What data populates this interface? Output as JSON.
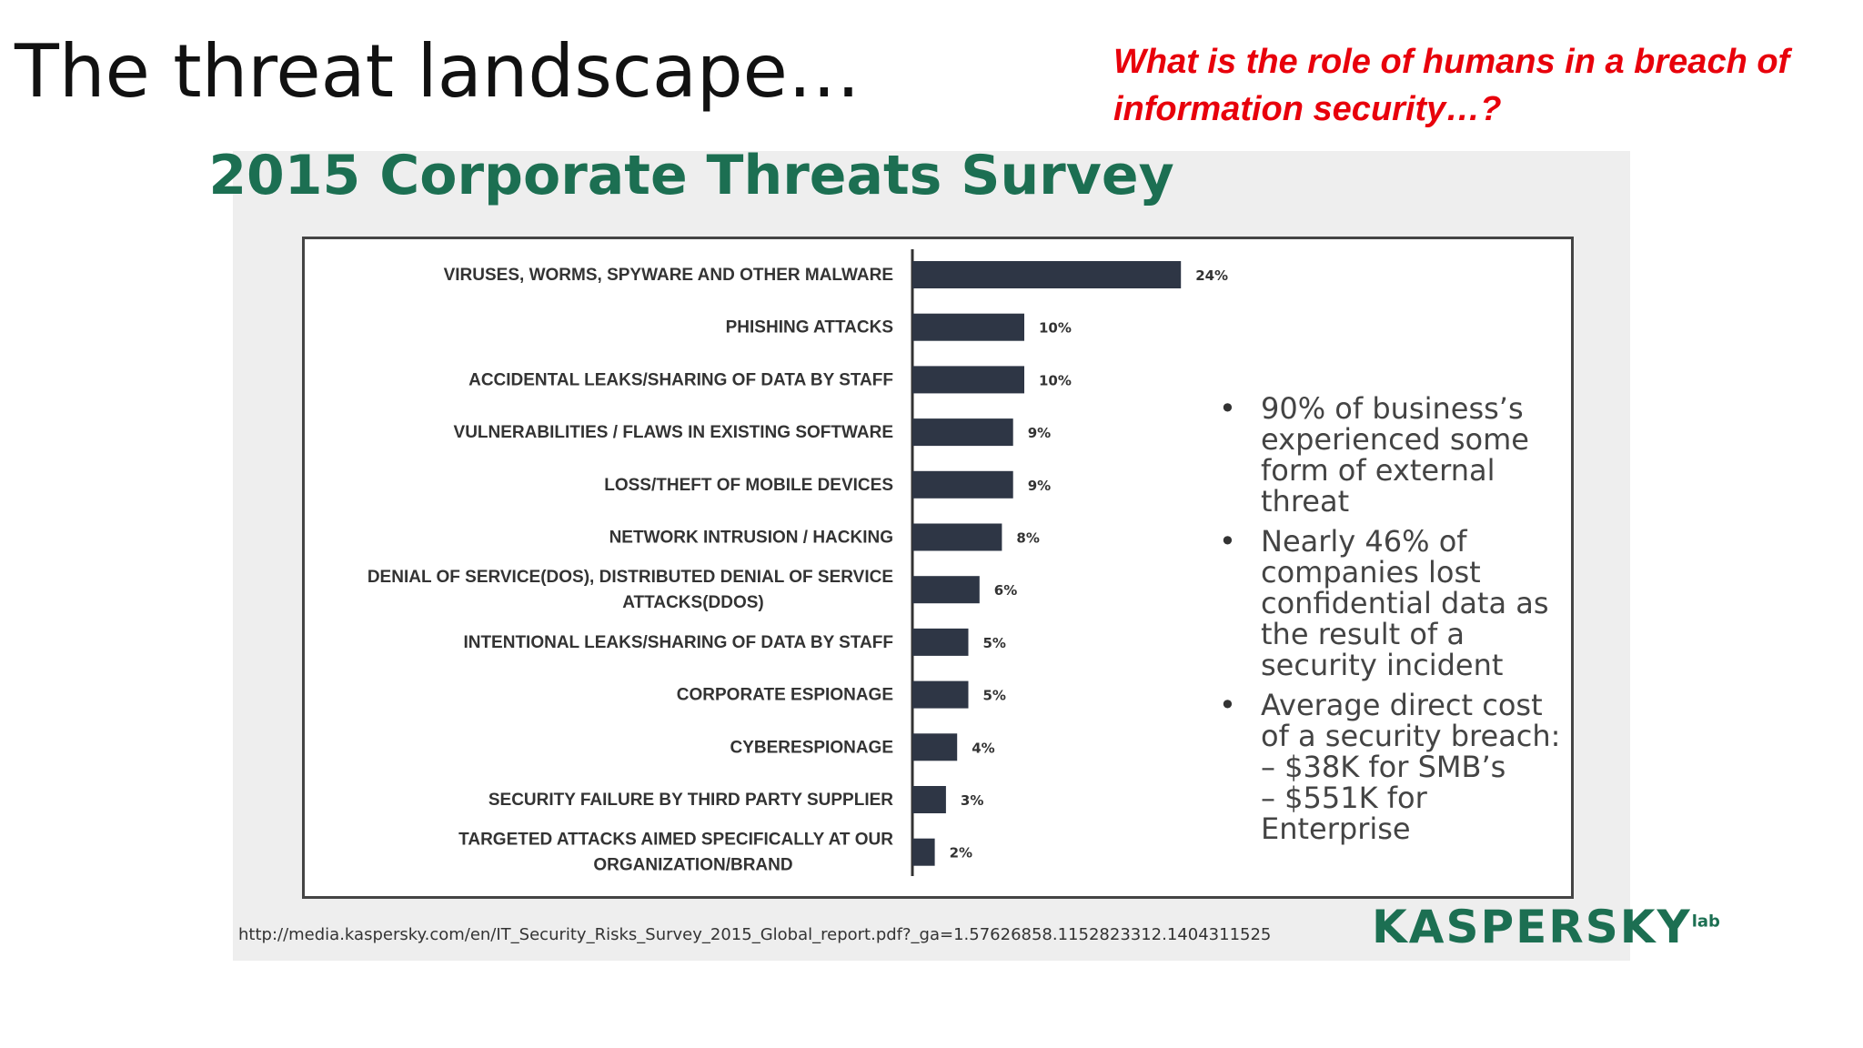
{
  "slide": {
    "title": "The threat landscape…",
    "question": "What is the role of humans in a breach of information security…?"
  },
  "chart_data": {
    "type": "bar",
    "orientation": "horizontal",
    "title": "2015 Corporate Threats Survey",
    "categories": [
      "VIRUSES, WORMS, SPYWARE AND OTHER MALWARE",
      "PHISHING ATTACKS",
      "ACCIDENTAL LEAKS/SHARING OF DATA BY STAFF",
      "VULNERABILITIES / FLAWS IN EXISTING SOFTWARE",
      "LOSS/THEFT OF MOBILE DEVICES",
      "NETWORK INTRUSION / HACKING",
      "DENIAL OF SERVICE(DOS), DISTRIBUTED DENIAL OF SERVICE ATTACKS(DDOS)",
      "INTENTIONAL LEAKS/SHARING OF DATA BY STAFF",
      "CORPORATE ESPIONAGE",
      "CYBERESPIONAGE",
      "SECURITY FAILURE BY THIRD PARTY SUPPLIER",
      "TARGETED ATTACKS AIMED SPECIFICALLY AT OUR ORGANIZATION/BRAND"
    ],
    "category_lines": [
      [
        "VIRUSES, WORMS, SPYWARE AND OTHER MALWARE"
      ],
      [
        "PHISHING ATTACKS"
      ],
      [
        "ACCIDENTAL LEAKS/SHARING OF DATA BY STAFF"
      ],
      [
        "VULNERABILITIES / FLAWS IN EXISTING SOFTWARE"
      ],
      [
        "LOSS/THEFT OF MOBILE DEVICES"
      ],
      [
        "NETWORK INTRUSION / HACKING"
      ],
      [
        "DENIAL OF SERVICE(DOS), DISTRIBUTED DENIAL OF SERVICE",
        "ATTACKS(DDOS)"
      ],
      [
        "INTENTIONAL LEAKS/SHARING OF DATA BY STAFF"
      ],
      [
        "CORPORATE ESPIONAGE"
      ],
      [
        "CYBERESPIONAGE"
      ],
      [
        "SECURITY FAILURE BY THIRD PARTY SUPPLIER"
      ],
      [
        "TARGETED ATTACKS AIMED SPECIFICALLY AT OUR",
        "ORGANIZATION/BRAND"
      ]
    ],
    "values": [
      24,
      10,
      10,
      9,
      9,
      8,
      6,
      5,
      5,
      4,
      3,
      2
    ],
    "value_labels": [
      "24%",
      "10%",
      "10%",
      "9%",
      "9%",
      "8%",
      "6%",
      "5%",
      "5%",
      "4%",
      "3%",
      "2%"
    ],
    "unit": "%",
    "xlim": [
      0,
      30
    ],
    "grid": false,
    "legend": "none",
    "bar_color": "#2e3645"
  },
  "bullets": [
    {
      "lines": [
        "90% of business’s",
        "experienced some",
        "form of external",
        "threat"
      ]
    },
    {
      "lines": [
        "Nearly 46% of",
        "companies lost",
        "confidential data as",
        "the result of a",
        "security incident"
      ]
    },
    {
      "lines": [
        "Average direct cost",
        "of a security breach:",
        "– $38K for SMB’s",
        "– $551K for",
        "Enterprise"
      ]
    }
  ],
  "bullet_symbol": "•",
  "source": "http://media.kaspersky.com/en/IT_Security_Risks_Survey_2015_Global_report.pdf?_ga=1.57626858.1152823312.1404311525",
  "logo": {
    "text": "KASPERSKY",
    "sub": "lab"
  },
  "colors": {
    "title_green": "#1c6f52",
    "question_red": "#e8000b",
    "bar": "#2e3645"
  }
}
